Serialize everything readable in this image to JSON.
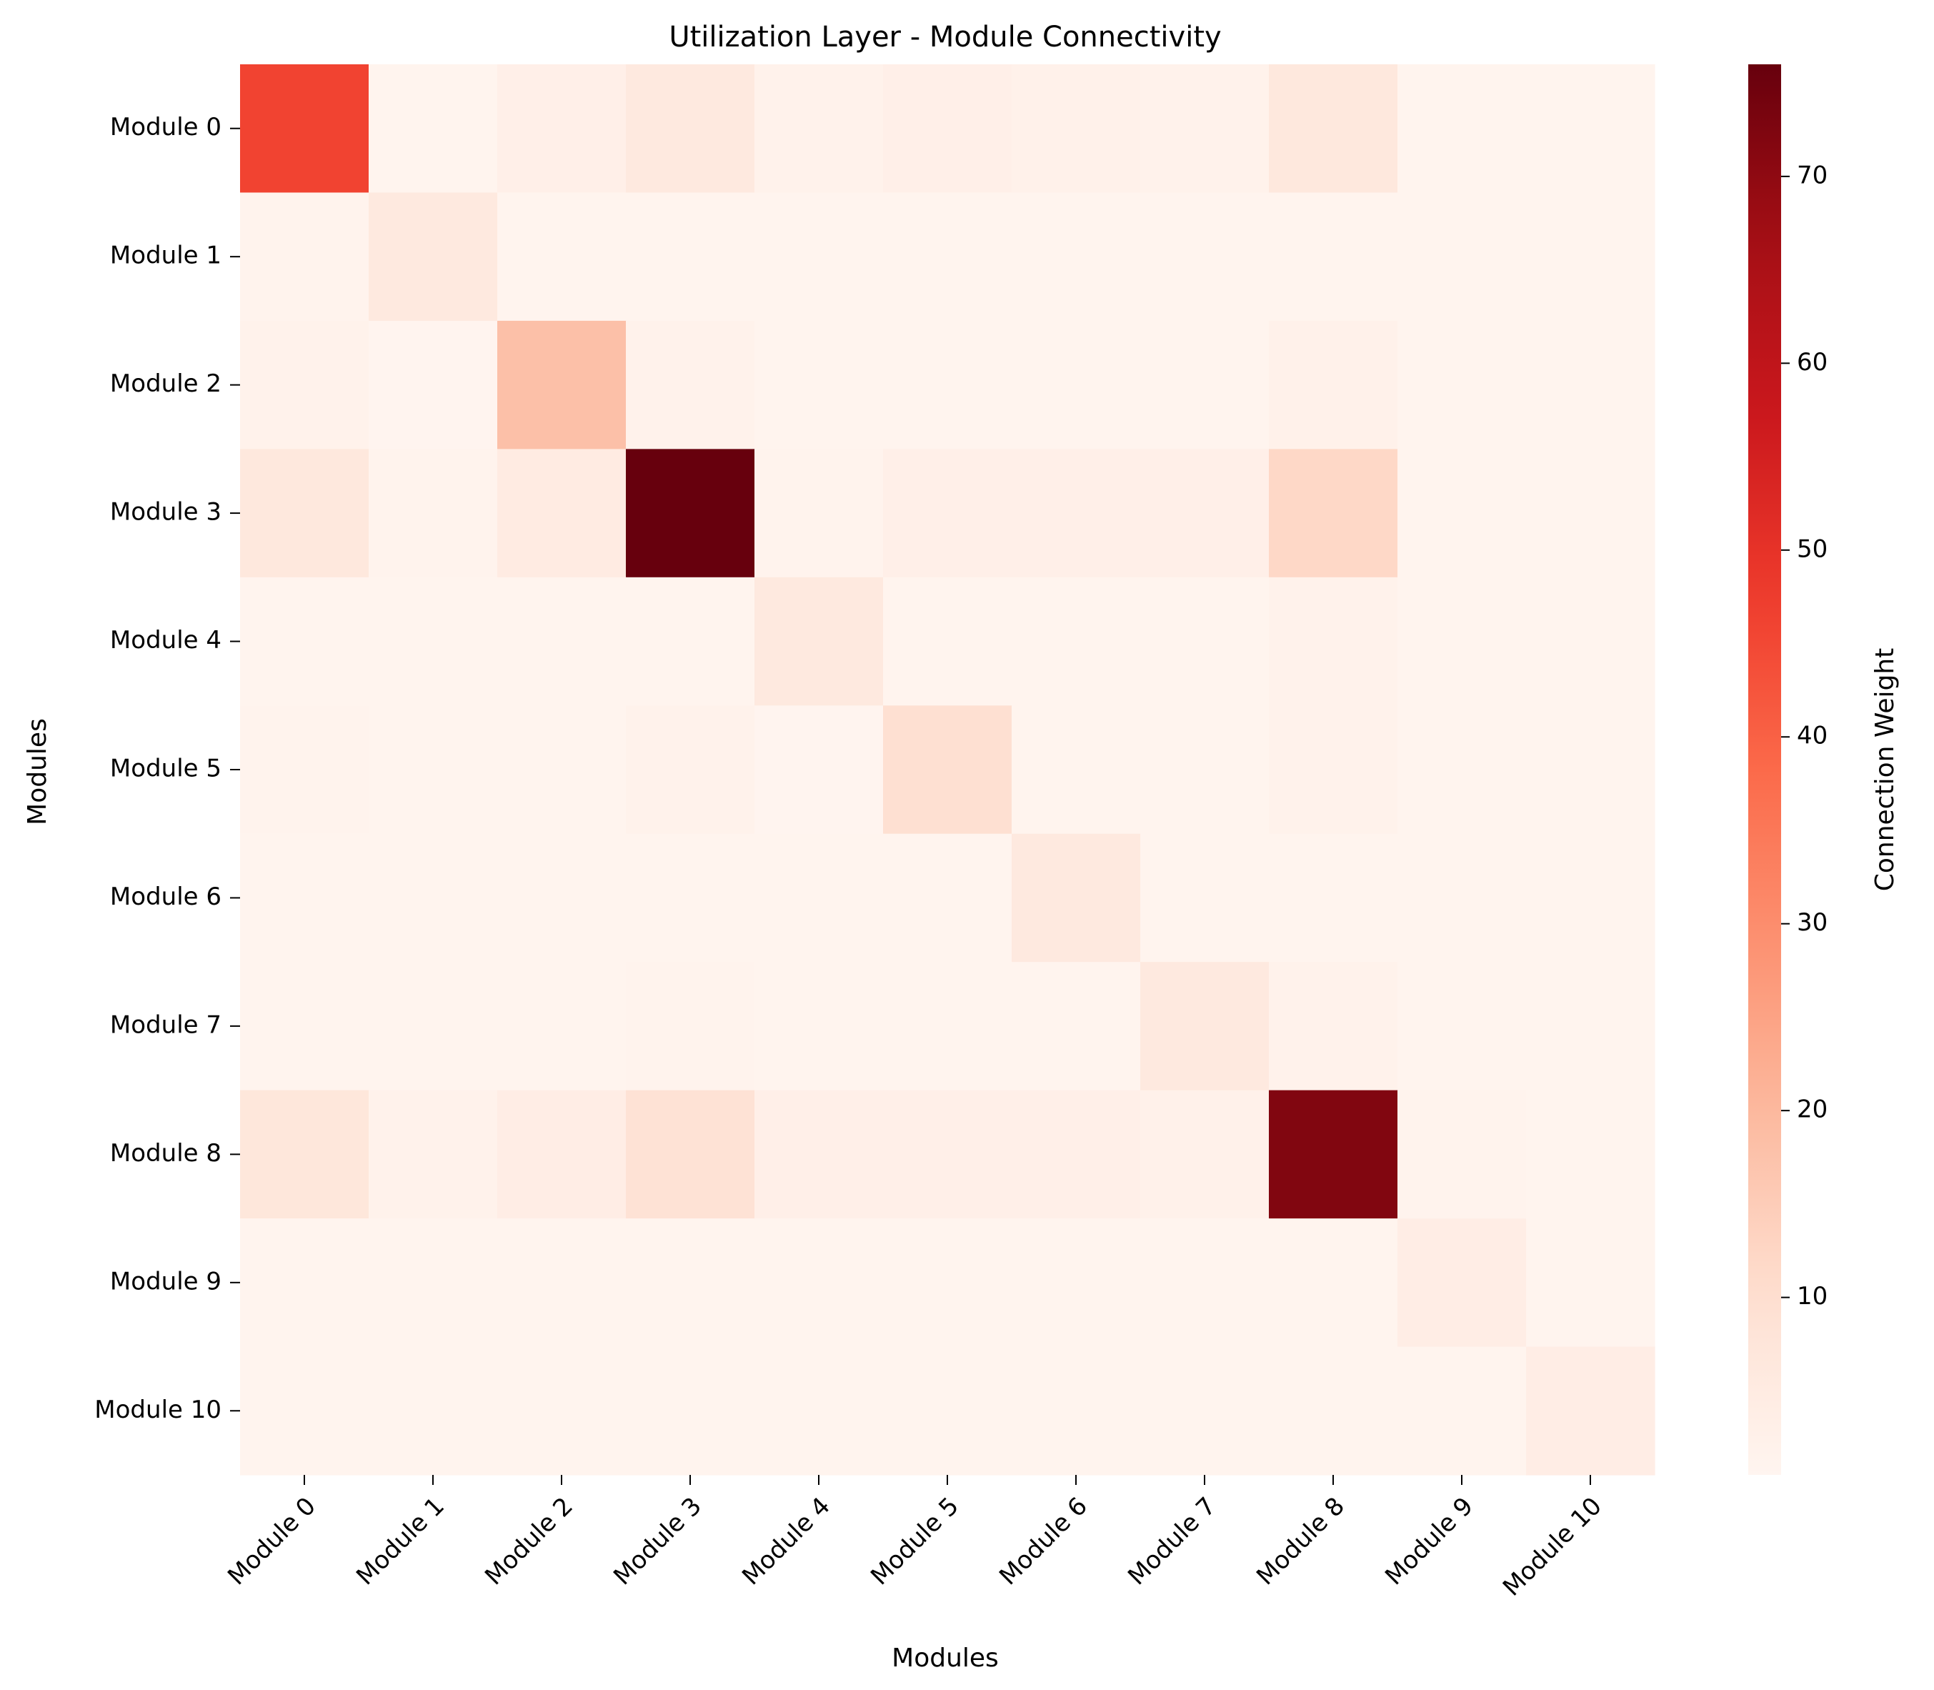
{
  "chart_data": {
    "type": "heatmap",
    "title": "Utilization Layer - Module Connectivity",
    "xlabel": "Modules",
    "ylabel": "Modules",
    "x_categories": [
      "Module 0",
      "Module 1",
      "Module 2",
      "Module 3",
      "Module 4",
      "Module 5",
      "Module 6",
      "Module 7",
      "Module 8",
      "Module 9",
      "Module 10"
    ],
    "y_categories": [
      "Module 0",
      "Module 1",
      "Module 2",
      "Module 3",
      "Module 4",
      "Module 5",
      "Module 6",
      "Module 7",
      "Module 8",
      "Module 9",
      "Module 10"
    ],
    "values": [
      [
        46,
        1,
        3,
        6,
        2,
        3,
        2.5,
        2,
        6.5,
        1,
        1
      ],
      [
        1.5,
        6,
        1,
        1,
        1,
        1,
        1,
        1,
        1,
        1,
        1
      ],
      [
        2,
        0.8,
        18,
        2,
        1,
        1,
        1,
        1,
        2.5,
        1,
        1
      ],
      [
        6.5,
        1.5,
        5,
        76,
        1.5,
        3,
        3,
        3,
        12,
        1,
        1
      ],
      [
        1,
        1,
        1,
        1,
        6,
        1,
        1,
        1,
        2,
        1,
        1
      ],
      [
        1.5,
        1,
        1,
        2,
        0.8,
        10,
        1,
        1,
        2,
        1,
        1
      ],
      [
        1,
        1,
        1,
        1,
        1,
        1,
        6,
        1,
        1,
        1,
        1
      ],
      [
        1,
        1,
        1,
        1.5,
        1,
        1,
        1,
        6,
        2,
        1,
        1
      ],
      [
        7,
        2,
        4,
        9,
        3,
        3,
        3,
        2.5,
        72,
        1.5,
        1
      ],
      [
        1,
        1,
        1,
        1,
        1,
        1,
        1,
        1,
        1,
        4,
        1
      ],
      [
        1,
        1,
        1,
        1,
        1,
        1,
        1,
        1,
        1,
        1,
        4
      ]
    ],
    "colormap": "Reds",
    "colorbar": {
      "label": "Connection Weight",
      "range": [
        0.5,
        76
      ],
      "ticks": [
        10,
        20,
        30,
        40,
        50,
        60,
        70
      ]
    }
  }
}
